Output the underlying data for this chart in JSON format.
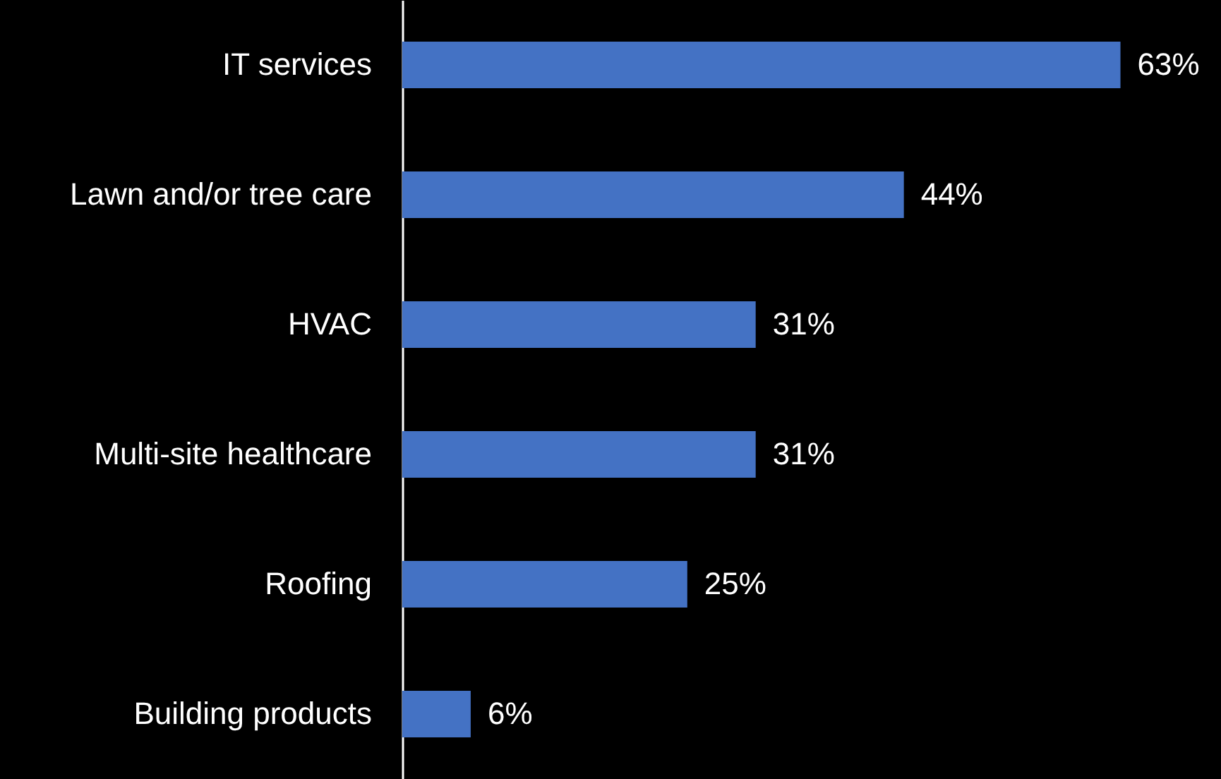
{
  "chart_data": {
    "type": "bar",
    "orientation": "horizontal",
    "categories": [
      "IT services",
      "Lawn and/or tree care",
      "HVAC",
      "Multi-site healthcare",
      "Roofing",
      "Building products"
    ],
    "values": [
      63,
      44,
      31,
      31,
      25,
      6
    ],
    "value_labels": [
      "63%",
      "44%",
      "31%",
      "31%",
      "25%",
      "6%"
    ],
    "color": "#4472c4"
  }
}
